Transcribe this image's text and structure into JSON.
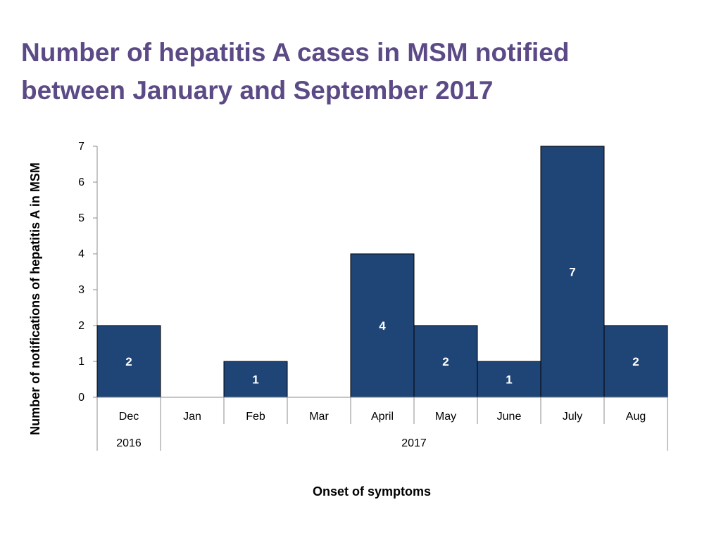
{
  "title_lines": [
    "Number of hepatitis A cases in MSM notified",
    "between January and September 2017"
  ],
  "colors": {
    "title": "#5b4a86",
    "bar_fill": "#1f4577",
    "bar_stroke": "#000000",
    "bar_label": "#ffffff",
    "axis": "#8c8c8c"
  },
  "chart_data": {
    "type": "bar",
    "title": "Number of hepatitis A cases in MSM notified between January and September 2017",
    "xlabel": "Onset of symptoms",
    "ylabel": "Number of notifications of hepatitis A in MSM",
    "categories": [
      "Dec",
      "Jan",
      "Feb",
      "Mar",
      "April",
      "May",
      "June",
      "July",
      "Aug"
    ],
    "values": [
      2,
      0,
      1,
      0,
      4,
      2,
      1,
      7,
      2
    ],
    "data_labels": [
      "2",
      "",
      "1",
      "",
      "4",
      "2",
      "1",
      "7",
      "2"
    ],
    "year_groups": [
      {
        "label": "2016",
        "span": 1
      },
      {
        "label": "2017",
        "span": 8
      }
    ],
    "ylim": [
      0,
      7
    ],
    "yticks": [
      0,
      1,
      2,
      3,
      4,
      5,
      6,
      7
    ],
    "grid": false,
    "legend": "none"
  }
}
